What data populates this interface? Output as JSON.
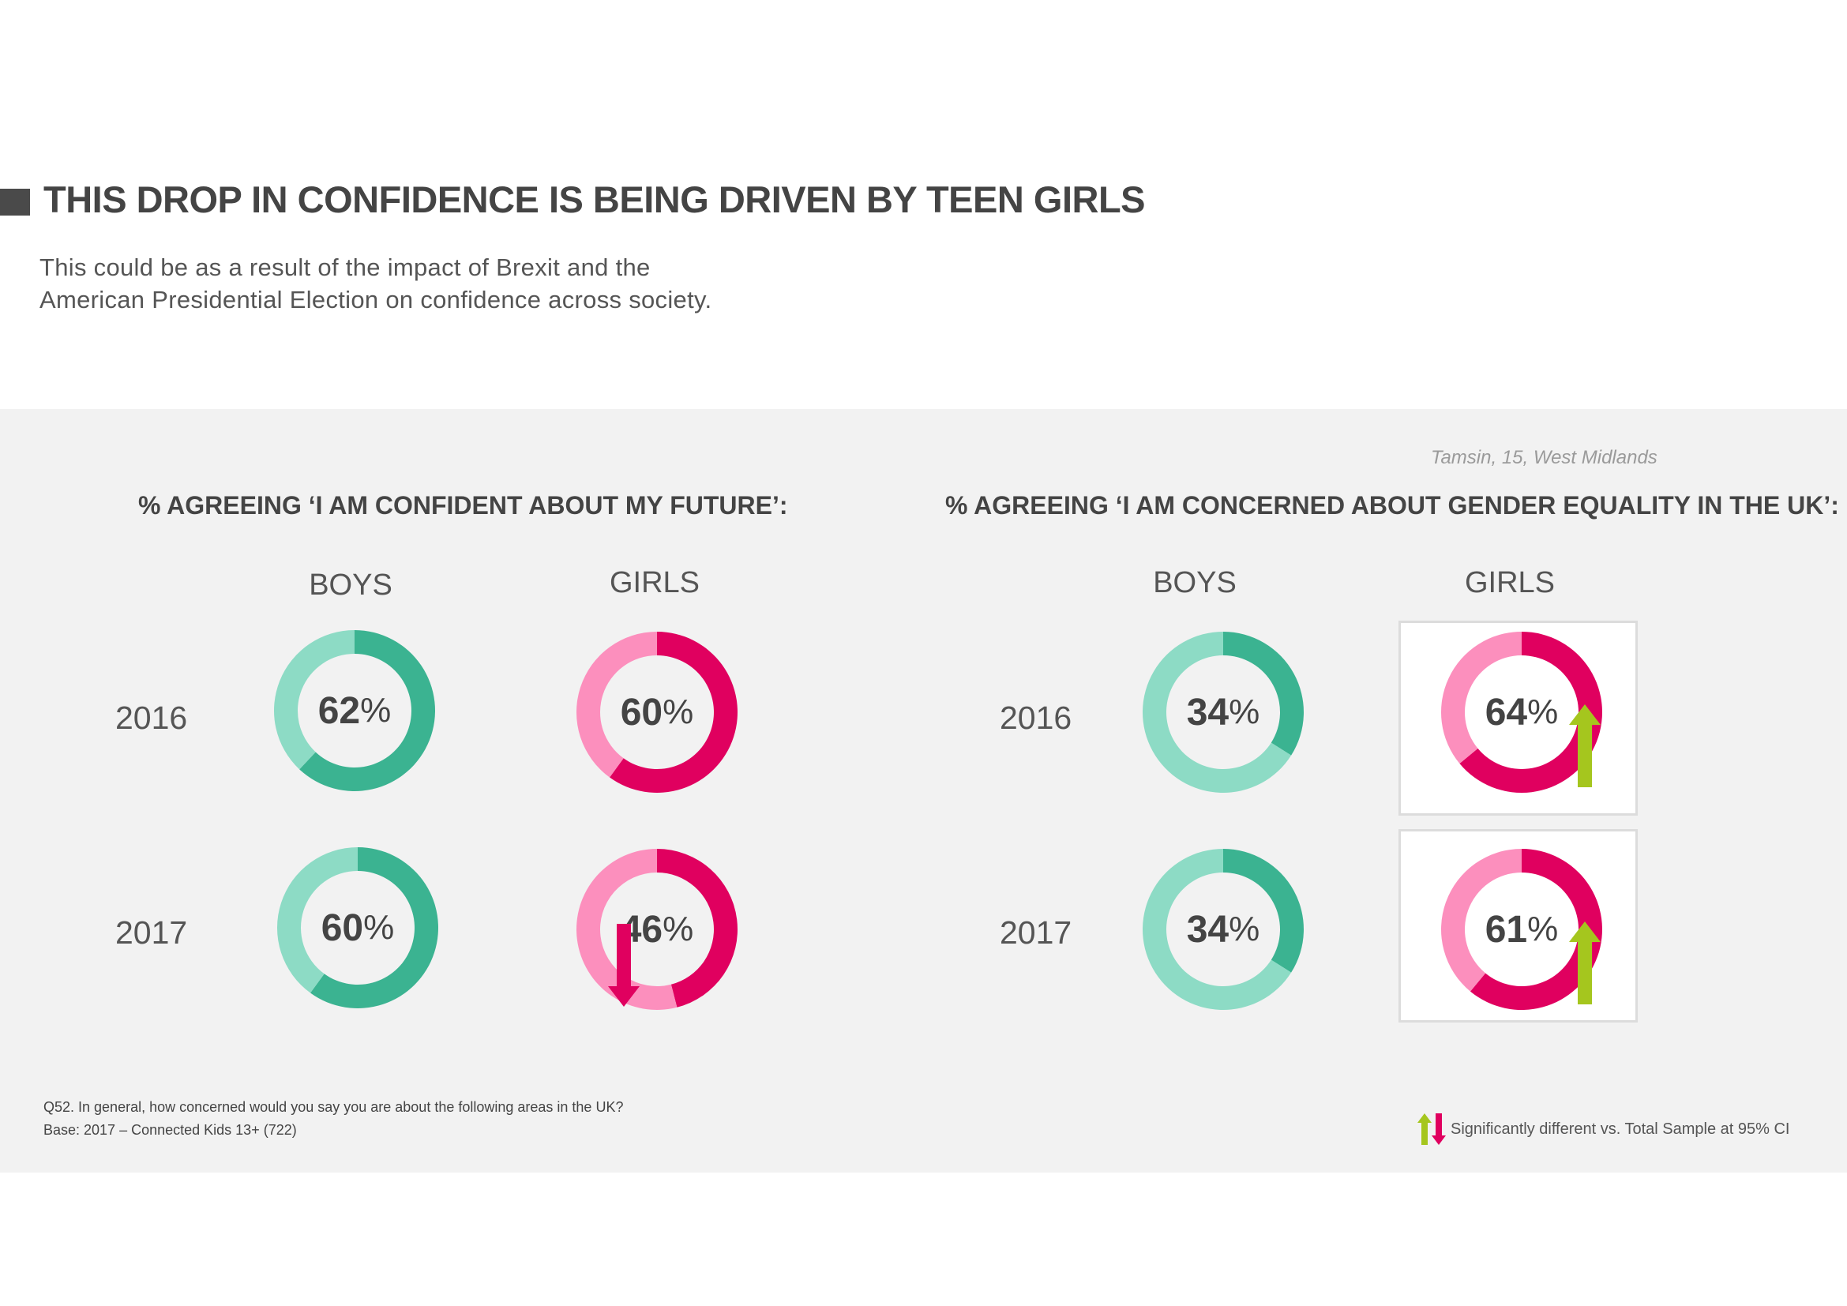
{
  "title": "THIS DROP IN CONFIDENCE IS BEING DRIVEN BY TEEN GIRLS",
  "subtitle_line1": "This could be as a result of the impact of Brexit and the",
  "subtitle_line2": "American Presidential Election on confidence across society.",
  "quote_attribution": "Tamsin, 15, West Midlands",
  "colors": {
    "boys_dark": "#3bb391",
    "boys_light": "#8ddbc5",
    "girls_dark": "#e0005f",
    "girls_light": "#fc8fbd",
    "up_arrow": "#a5c61e",
    "down_arrow": "#e0005f"
  },
  "chart_data": [
    {
      "type": "pie",
      "title": "% AGREEING ‘I AM CONFIDENT ABOUT MY FUTURE’:",
      "columns": [
        "BOYS",
        "GIRLS"
      ],
      "rows": [
        "2016",
        "2017"
      ],
      "values": [
        {
          "group": "BOYS",
          "year": "2016",
          "value": 62,
          "unit": "%",
          "highlight": false,
          "significance": "none"
        },
        {
          "group": "GIRLS",
          "year": "2016",
          "value": 60,
          "unit": "%",
          "highlight": false,
          "significance": "none"
        },
        {
          "group": "BOYS",
          "year": "2017",
          "value": 60,
          "unit": "%",
          "highlight": false,
          "significance": "none"
        },
        {
          "group": "GIRLS",
          "year": "2017",
          "value": 46,
          "unit": "%",
          "highlight": true,
          "significance": "down"
        }
      ]
    },
    {
      "type": "pie",
      "title": "% AGREEING ‘I AM CONCERNED ABOUT GENDER EQUALITY IN THE UK’:",
      "columns": [
        "BOYS",
        "GIRLS"
      ],
      "rows": [
        "2016",
        "2017"
      ],
      "values": [
        {
          "group": "BOYS",
          "year": "2016",
          "value": 34,
          "unit": "%",
          "highlight": false,
          "significance": "none"
        },
        {
          "group": "GIRLS",
          "year": "2016",
          "value": 64,
          "unit": "%",
          "highlight": true,
          "significance": "up"
        },
        {
          "group": "BOYS",
          "year": "2017",
          "value": 34,
          "unit": "%",
          "highlight": false,
          "significance": "none"
        },
        {
          "group": "GIRLS",
          "year": "2017",
          "value": 61,
          "unit": "%",
          "highlight": true,
          "significance": "up"
        }
      ]
    }
  ],
  "footnote_question": "Q52. In general, how concerned would you say you are about the following areas in the UK?",
  "footnote_base": "Base: 2017 – Connected Kids 13+ (722)",
  "legend_text": "Significantly different vs. Total Sample at 95% CI"
}
